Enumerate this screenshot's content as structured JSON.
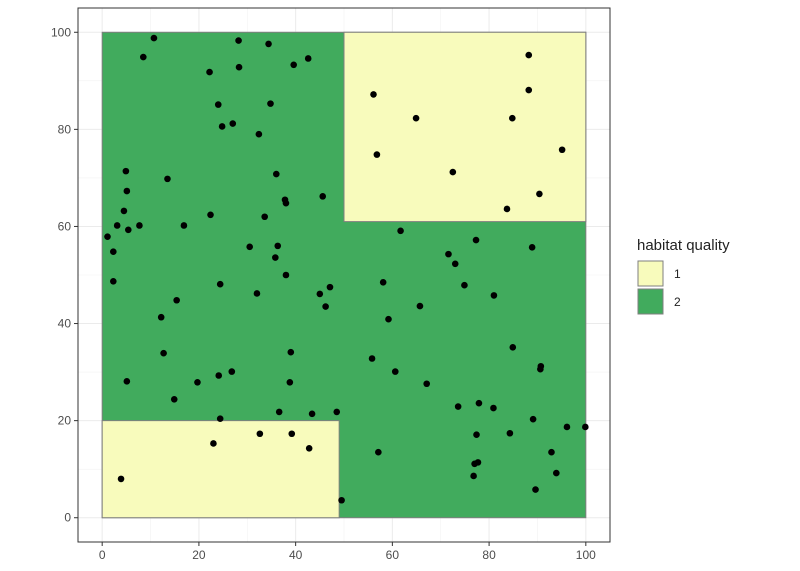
{
  "chart_data": {
    "type": "scatter",
    "xlim": [
      -5,
      105
    ],
    "ylim": [
      -5,
      105
    ],
    "x_ticks": [
      0,
      20,
      40,
      60,
      80,
      100
    ],
    "y_ticks": [
      0,
      20,
      40,
      60,
      80,
      100
    ],
    "x_tick_labels": [
      "0",
      "20",
      "40",
      "60",
      "80",
      "100"
    ],
    "y_tick_labels": [
      "0",
      "20",
      "40",
      "60",
      "80",
      "100"
    ],
    "grid": true,
    "background_regions": [
      {
        "quality": 2,
        "x": [
          0,
          100
        ],
        "y": [
          0,
          100
        ]
      },
      {
        "quality": 1,
        "x": [
          50,
          100
        ],
        "y": [
          61,
          100
        ]
      },
      {
        "quality": 1,
        "x": [
          0,
          49
        ],
        "y": [
          0,
          20
        ]
      }
    ],
    "legend": {
      "title": "habitat quality",
      "placement": "right",
      "items": [
        {
          "label": "1",
          "color": "#f8fbbc"
        },
        {
          "label": "2",
          "color": "#41ab5d"
        }
      ]
    },
    "point_color": "#000000",
    "points": [
      [
        3.9,
        8.0
      ],
      [
        1.1,
        57.9
      ],
      [
        3.1,
        60.2
      ],
      [
        2.3,
        54.8
      ],
      [
        2.3,
        48.7
      ],
      [
        4.9,
        71.4
      ],
      [
        5.1,
        67.3
      ],
      [
        4.5,
        63.2
      ],
      [
        5.4,
        59.3
      ],
      [
        7.7,
        60.2
      ],
      [
        5.1,
        28.1
      ],
      [
        8.5,
        94.9
      ],
      [
        10.7,
        98.8
      ],
      [
        13.5,
        69.8
      ],
      [
        12.2,
        41.3
      ],
      [
        15.4,
        44.8
      ],
      [
        16.9,
        60.2
      ],
      [
        12.7,
        33.9
      ],
      [
        14.9,
        24.4
      ],
      [
        19.7,
        27.9
      ],
      [
        22.2,
        91.8
      ],
      [
        22.4,
        62.4
      ],
      [
        24.0,
        85.1
      ],
      [
        24.8,
        80.6
      ],
      [
        27.0,
        81.2
      ],
      [
        28.2,
        98.3
      ],
      [
        28.3,
        92.8
      ],
      [
        24.1,
        29.3
      ],
      [
        26.8,
        30.1
      ],
      [
        24.4,
        48.1
      ],
      [
        24.4,
        20.4
      ],
      [
        23.0,
        15.3
      ],
      [
        32.4,
        79.0
      ],
      [
        32.0,
        46.2
      ],
      [
        30.5,
        55.8
      ],
      [
        33.6,
        62.0
      ],
      [
        34.4,
        97.6
      ],
      [
        34.8,
        85.3
      ],
      [
        36.0,
        70.8
      ],
      [
        37.8,
        65.5
      ],
      [
        38.0,
        64.8
      ],
      [
        35.8,
        53.6
      ],
      [
        36.3,
        56.0
      ],
      [
        38.0,
        50.0
      ],
      [
        39.6,
        93.3
      ],
      [
        42.6,
        94.6
      ],
      [
        45.6,
        66.2
      ],
      [
        45.0,
        46.1
      ],
      [
        46.2,
        43.5
      ],
      [
        47.1,
        47.5
      ],
      [
        39.0,
        34.1
      ],
      [
        38.8,
        27.9
      ],
      [
        36.6,
        21.8
      ],
      [
        32.6,
        17.3
      ],
      [
        39.2,
        17.3
      ],
      [
        43.4,
        21.4
      ],
      [
        48.5,
        21.8
      ],
      [
        42.8,
        14.3
      ],
      [
        49.5,
        3.6
      ],
      [
        56.1,
        87.2
      ],
      [
        56.8,
        74.8
      ],
      [
        64.9,
        82.3
      ],
      [
        72.5,
        71.2
      ],
      [
        61.7,
        59.1
      ],
      [
        58.1,
        48.5
      ],
      [
        59.2,
        40.9
      ],
      [
        65.7,
        43.6
      ],
      [
        55.8,
        32.8
      ],
      [
        60.6,
        30.1
      ],
      [
        67.1,
        27.6
      ],
      [
        57.1,
        13.5
      ],
      [
        71.6,
        54.3
      ],
      [
        73.0,
        52.3
      ],
      [
        74.9,
        47.9
      ],
      [
        77.3,
        57.2
      ],
      [
        81.0,
        45.8
      ],
      [
        84.9,
        35.1
      ],
      [
        73.6,
        22.9
      ],
      [
        77.9,
        23.6
      ],
      [
        80.9,
        22.6
      ],
      [
        77.4,
        17.1
      ],
      [
        84.3,
        17.4
      ],
      [
        77.0,
        11.1
      ],
      [
        77.7,
        11.4
      ],
      [
        76.8,
        8.6
      ],
      [
        88.2,
        95.3
      ],
      [
        88.2,
        88.1
      ],
      [
        84.8,
        82.3
      ],
      [
        95.1,
        75.8
      ],
      [
        90.4,
        66.7
      ],
      [
        83.7,
        63.6
      ],
      [
        88.9,
        55.7
      ],
      [
        90.6,
        30.6
      ],
      [
        90.7,
        31.2
      ],
      [
        89.1,
        20.3
      ],
      [
        96.1,
        18.7
      ],
      [
        99.9,
        18.7
      ],
      [
        92.9,
        13.5
      ],
      [
        93.9,
        9.2
      ],
      [
        89.6,
        5.8
      ]
    ]
  }
}
